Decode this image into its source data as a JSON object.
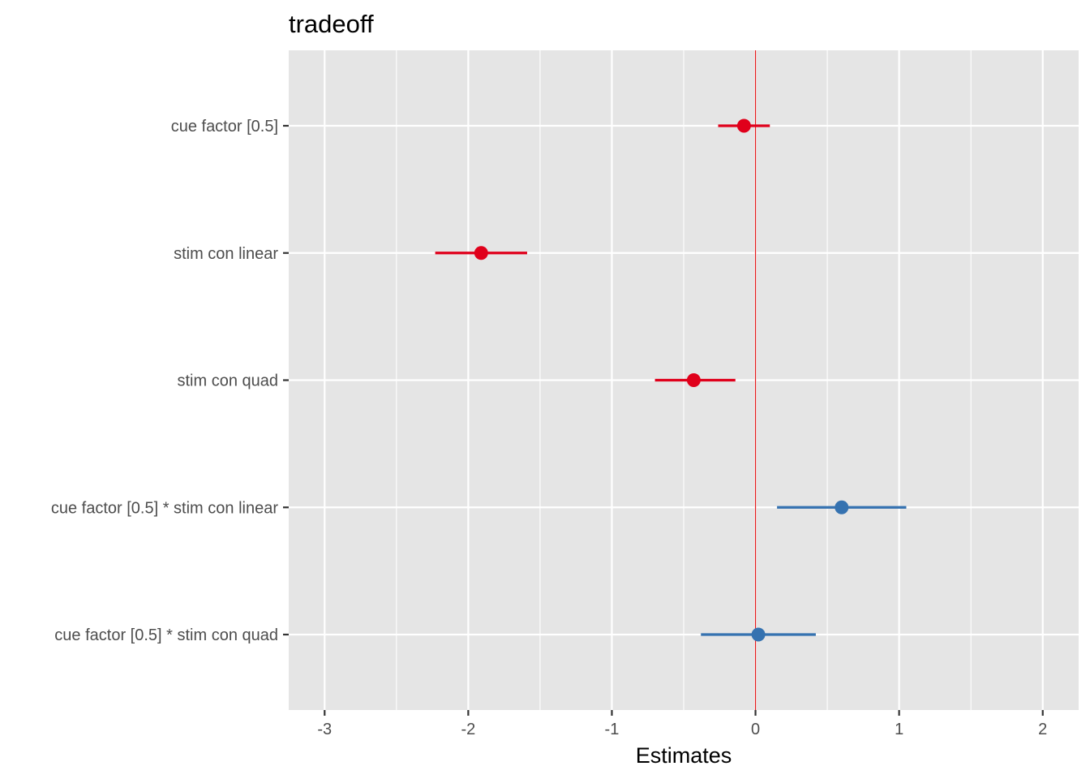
{
  "chart_data": {
    "type": "scatter",
    "title": "tradeoff",
    "xlabel": "Estimates",
    "ylabel": "",
    "xlim": [
      -3.25,
      2.25
    ],
    "x_ticks": [
      -3,
      -2,
      -1,
      0,
      1,
      2
    ],
    "x_tick_labels": [
      "-3",
      "-2",
      "-1",
      "0",
      "1",
      "2"
    ],
    "grid": true,
    "legend": "none",
    "reference_line": {
      "x": 0,
      "color": "#e41a1c"
    },
    "colors": {
      "negative": "#e0001b",
      "positive": "#3572b0",
      "panel": "#e5e5e5",
      "grid": "#ffffff"
    },
    "terms": [
      {
        "label": "cue factor [0.5]",
        "estimate": -0.08,
        "ci_low": -0.26,
        "ci_high": 0.1,
        "sign": "negative"
      },
      {
        "label": "stim con linear",
        "estimate": -1.91,
        "ci_low": -2.23,
        "ci_high": -1.59,
        "sign": "negative"
      },
      {
        "label": "stim con quad",
        "estimate": -0.43,
        "ci_low": -0.7,
        "ci_high": -0.14,
        "sign": "negative"
      },
      {
        "label": "cue factor [0.5] * stim con linear",
        "estimate": 0.6,
        "ci_low": 0.15,
        "ci_high": 1.05,
        "sign": "positive"
      },
      {
        "label": "cue factor [0.5] * stim con quad",
        "estimate": 0.02,
        "ci_low": -0.38,
        "ci_high": 0.42,
        "sign": "positive"
      }
    ]
  }
}
